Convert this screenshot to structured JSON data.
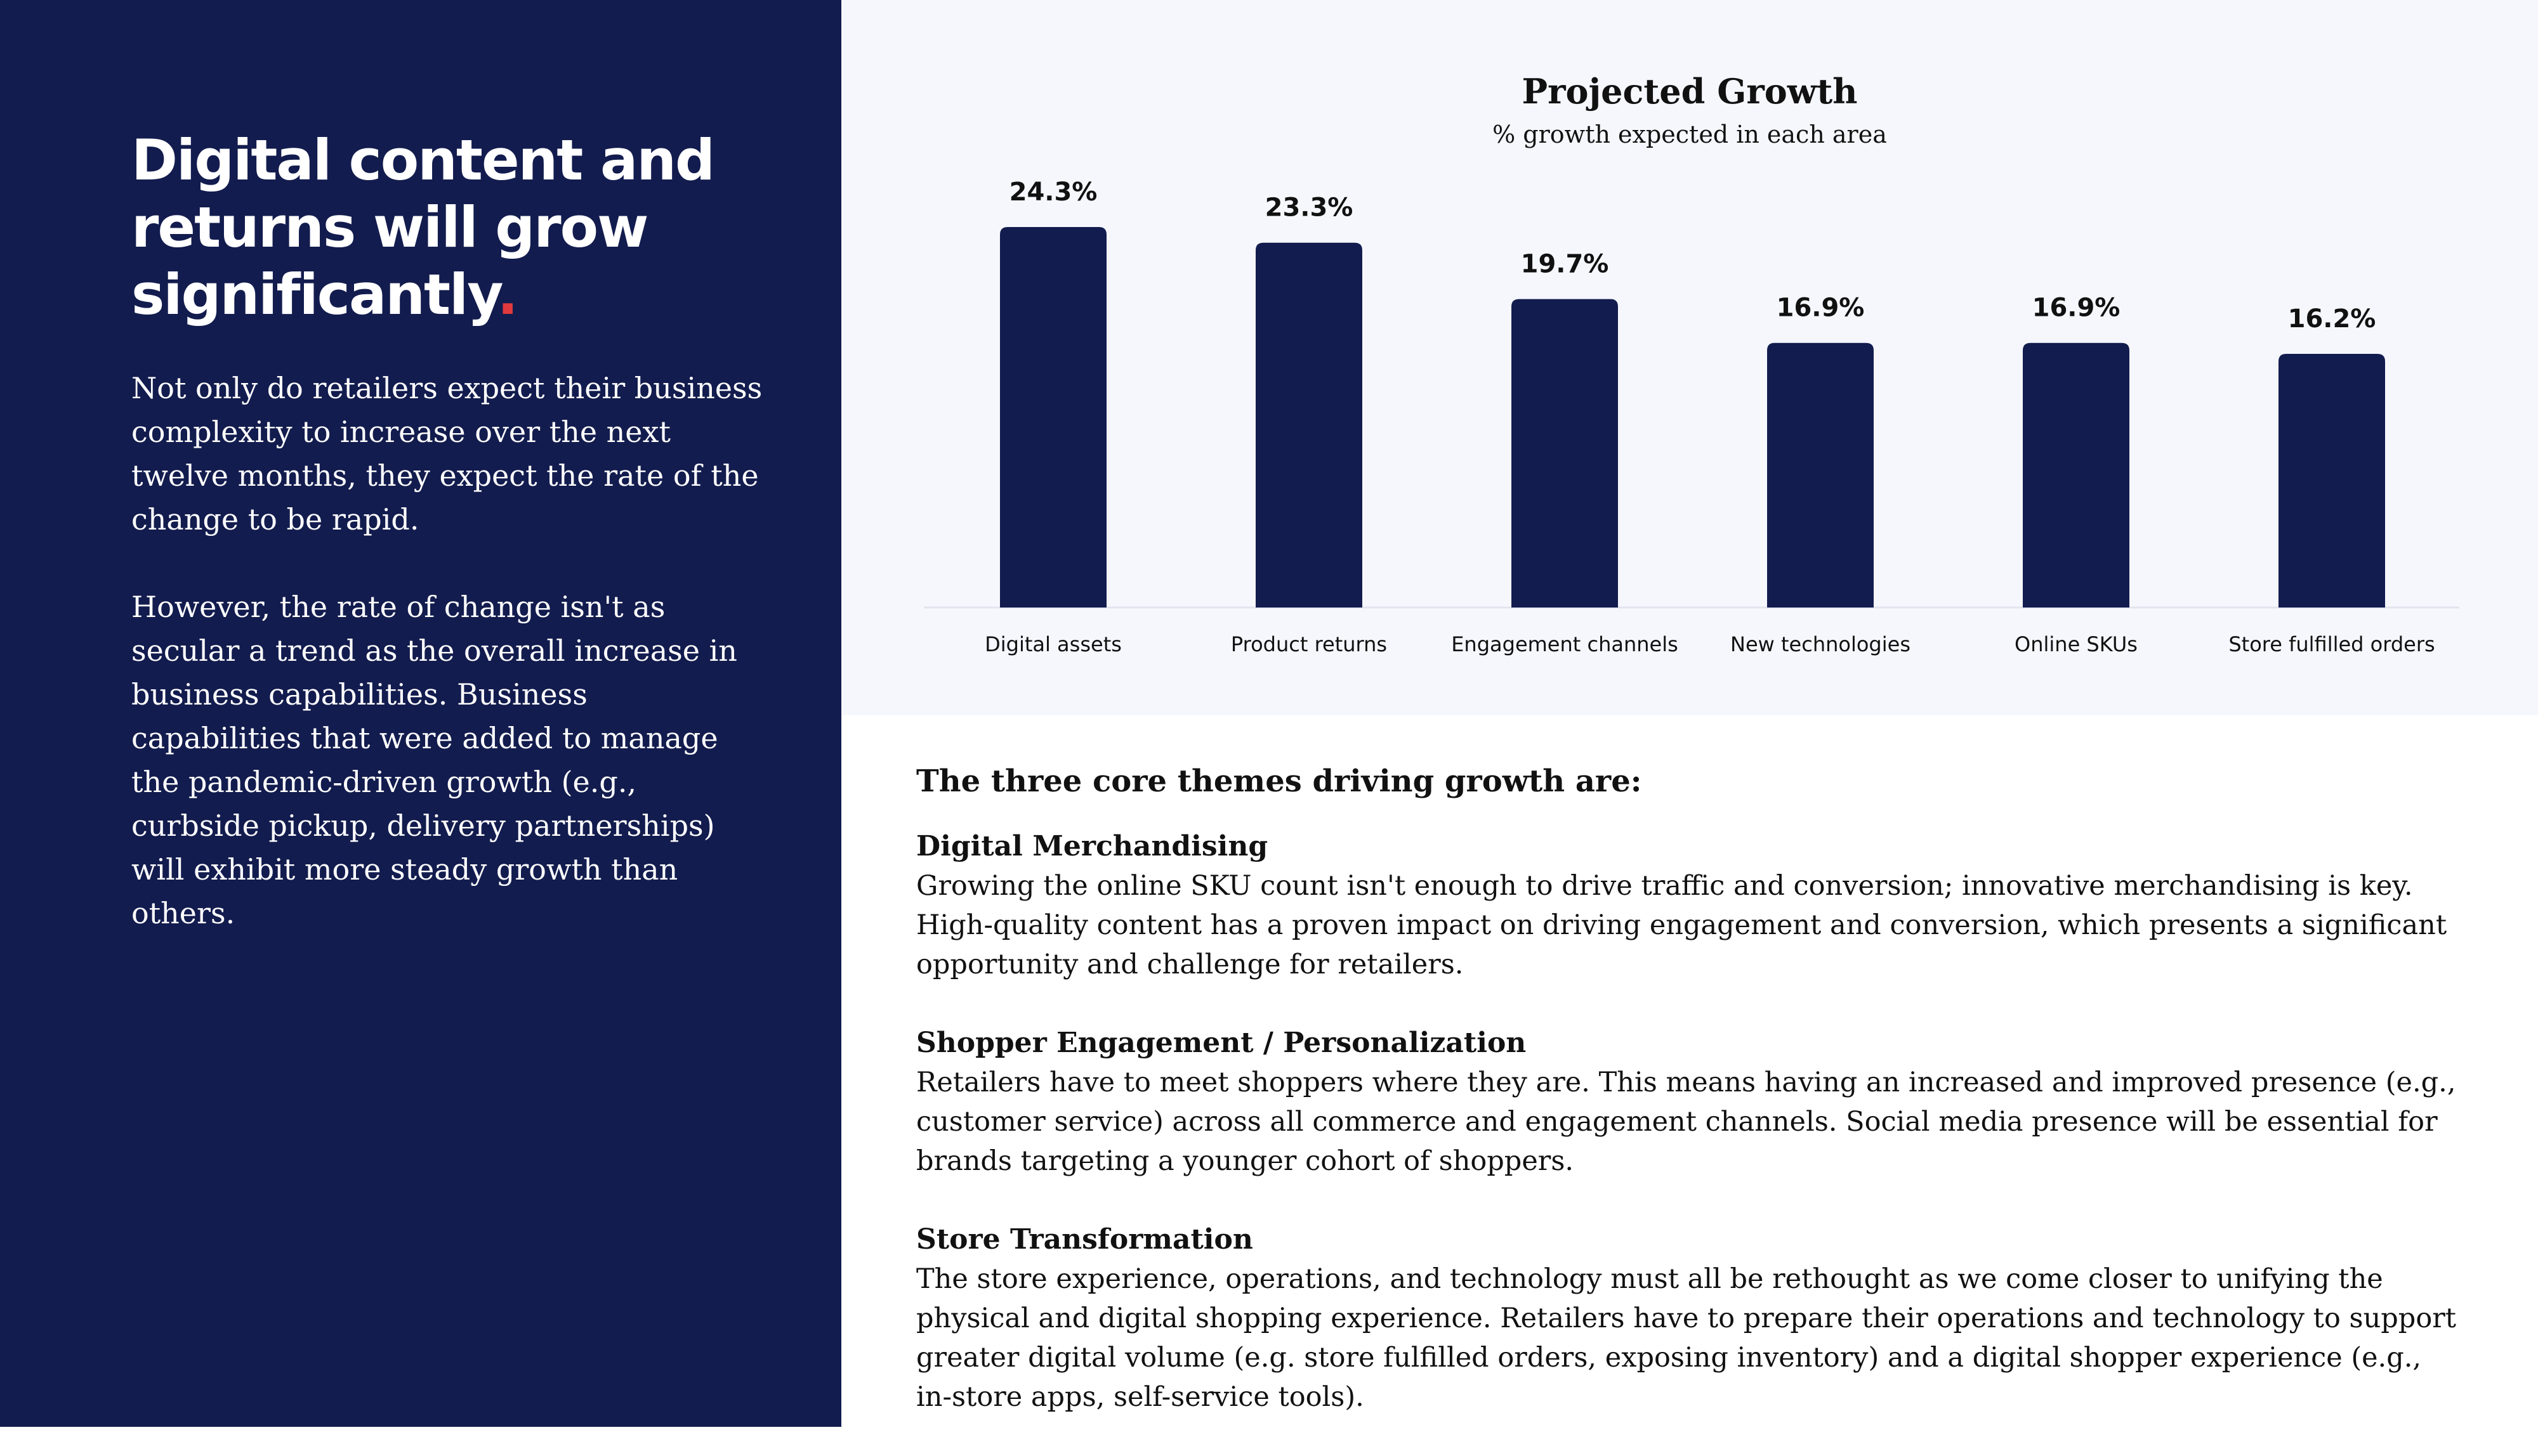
{
  "left": {
    "headline": "Digital content and returns will grow significantly",
    "headline_accent": ".",
    "paragraphs": [
      "Not only do retailers expect their business complexity to increase over the next twelve months, they expect the rate of the change to be rapid.",
      "However, the rate of change isn't as secular a trend as the overall increase in business capabilities. Business capabilities that were added to manage the pandemic-driven growth (e.g., curbside pickup, delivery partnerships) will exhibit more steady growth than others."
    ]
  },
  "chart_data": {
    "type": "bar",
    "title": "Projected Growth",
    "subtitle": "% growth expected in each area",
    "categories": [
      "Digital assets",
      "Product returns",
      "Engagement channels",
      "New technologies",
      "Online SKUs",
      "Store fulfilled orders"
    ],
    "values": [
      24.3,
      23.3,
      19.7,
      16.9,
      16.9,
      16.2
    ],
    "data_labels": [
      "24.3%",
      "23.3%",
      "19.7%",
      "16.9%",
      "16.9%",
      "16.2%"
    ],
    "bar_color": "#131c4e",
    "ylim": [
      0,
      24.3
    ],
    "grid": false,
    "legend": "none"
  },
  "themes": {
    "heading": "The three core themes driving growth are:",
    "items": [
      {
        "title": "Digital Merchandising",
        "body": "Growing the online SKU count isn't enough to drive traffic and conversion; innovative merchandising is key. High-quality content has a proven impact on driving engagement and conversion, which presents a significant opportunity and challenge for retailers."
      },
      {
        "title": "Shopper Engagement / Personalization",
        "body": "Retailers have to meet shoppers where they are. This means having an increased and improved presence (e.g., customer service) across all commerce and engagement channels. Social media presence will be essential for brands targeting a younger cohort of shoppers."
      },
      {
        "title": "Store Transformation",
        "body": "The store experience, operations, and technology must all be rethought as we come closer to unifying the physical and digital shopping experience. Retailers have to prepare their operations and technology to support greater digital volume (e.g. store fulfilled orders, exposing inventory) and a digital shopper experience (e.g., in-store apps, self-service tools)."
      }
    ]
  },
  "colors": {
    "navy": "#131c4e",
    "accent_red": "#e03a3e",
    "chart_background": "#f6f7fd"
  }
}
